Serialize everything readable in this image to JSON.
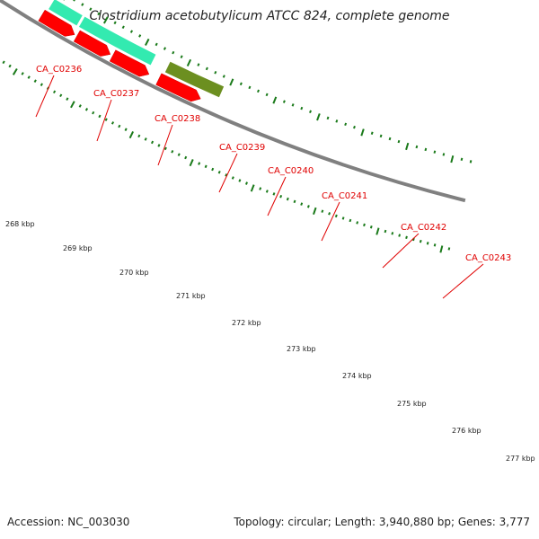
{
  "title": "Clostridium acetobutylicum ATCC 824, complete genome",
  "footer": {
    "accession": "Accession: NC_003030",
    "stats": "Topology: circular; Length: 3,940,880 bp; Genes: 3,777"
  },
  "colors": {
    "gene_label": "#e00000",
    "cds": "#ff0000",
    "gene_cyan": "#33eab0",
    "gene_green": "#3cc43c",
    "gene_olive": "#6c8f20",
    "gene_orange": "#ff8c00",
    "tick": "#1a7a1a",
    "backbone": "#808080"
  },
  "gene_labels": [
    "CA_C0236",
    "CA_C0237",
    "CA_C0238",
    "CA_C0239",
    "CA_C0240",
    "CA_C0241",
    "CA_C0242",
    "CA_C0243"
  ],
  "scale_labels": [
    "268 kbp",
    "269 kbp",
    "270 kbp",
    "271 kbp",
    "272 kbp",
    "273 kbp",
    "274 kbp",
    "275 kbp",
    "276 kbp",
    "277 kbp"
  ]
}
